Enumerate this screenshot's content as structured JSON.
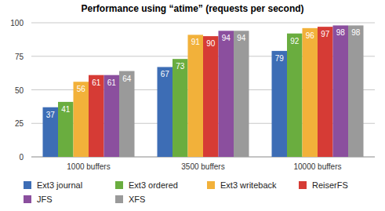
{
  "chart_data": {
    "type": "bar",
    "title": "Performance using “atime” (requests per second)",
    "categories": [
      "1000 buffers",
      "3500 buffers",
      "10000 buffers"
    ],
    "series": [
      {
        "name": "Ext3 journal",
        "color": "#3d6db5",
        "values": [
          37,
          67,
          79
        ]
      },
      {
        "name": "Ext3 ordered",
        "color": "#6aad3f",
        "values": [
          41,
          73,
          92
        ]
      },
      {
        "name": "Ext3 writeback",
        "color": "#f2b13a",
        "values": [
          56,
          91,
          96
        ]
      },
      {
        "name": "ReiserFS",
        "color": "#d63b35",
        "values": [
          61,
          90,
          97
        ]
      },
      {
        "name": "JFS",
        "color": "#8b4f9e",
        "values": [
          61,
          94,
          98
        ]
      },
      {
        "name": "XFS",
        "color": "#9a9a9a",
        "values": [
          64,
          94,
          98
        ]
      }
    ],
    "ylim": [
      0,
      100
    ],
    "yticks": [
      0,
      25,
      50,
      75,
      100
    ],
    "grid": true,
    "data_labels": true,
    "legend": "bottom"
  }
}
